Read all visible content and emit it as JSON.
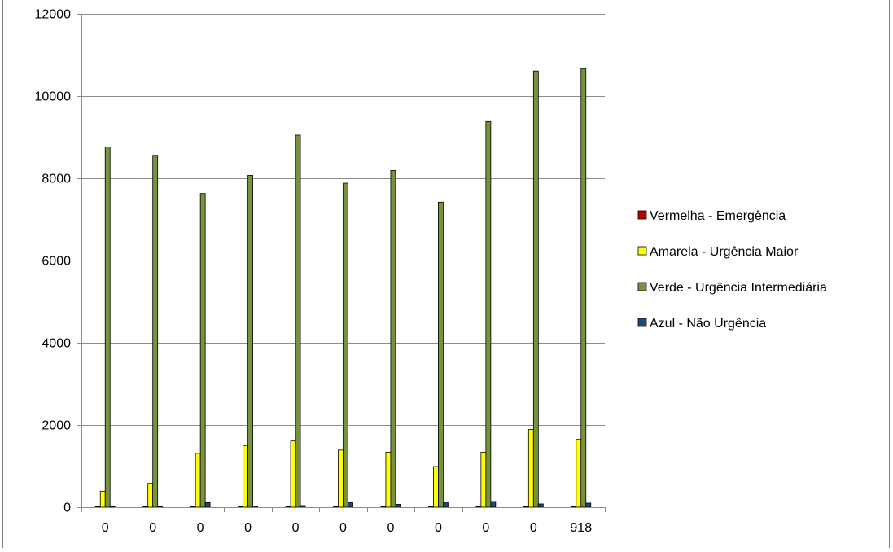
{
  "chart_data": {
    "type": "bar",
    "categories": [
      "0",
      "0",
      "0",
      "0",
      "0",
      "0",
      "0",
      "0",
      "0",
      "0",
      "918"
    ],
    "series": [
      {
        "name": "Vermelha - Emergência",
        "color": "#c00000",
        "values": [
          5,
          3,
          5,
          3,
          4,
          4,
          4,
          3,
          4,
          4,
          4
        ]
      },
      {
        "name": "Amarela - Urgência Maior",
        "color": "#ffff00",
        "values": [
          390,
          580,
          1310,
          1500,
          1610,
          1390,
          1340,
          990,
          1340,
          1890,
          1650
        ]
      },
      {
        "name": "Verde - Urgência Intermediária",
        "color": "#77933c",
        "values": [
          8760,
          8560,
          7630,
          8070,
          9050,
          7880,
          8190,
          7420,
          9380,
          10610,
          10670
        ]
      },
      {
        "name": "Azul - Não Urgência",
        "color": "#1f497d",
        "values": [
          15,
          15,
          110,
          25,
          40,
          110,
          70,
          120,
          140,
          80,
          100
        ]
      }
    ],
    "ylim": [
      0,
      12000
    ],
    "yticks": [
      "0",
      "2000",
      "4000",
      "6000",
      "8000",
      "10000",
      "12000"
    ],
    "grid": true,
    "legend_position": "right"
  }
}
